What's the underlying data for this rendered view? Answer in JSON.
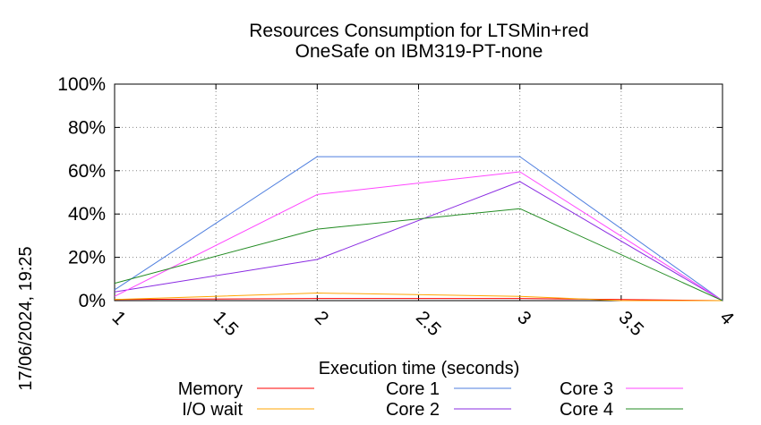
{
  "chart_data": {
    "type": "line",
    "title_line1": "Resources Consumption for LTSMin+red",
    "title_line2": "OneSafe on IBM319-PT-none",
    "xlabel": "Execution time (seconds)",
    "ylabel": "",
    "side_label": "17/06/2024, 19:25",
    "xlim": [
      1,
      4
    ],
    "ylim": [
      0,
      100
    ],
    "x_ticks": [
      "1",
      "1.5",
      "2",
      "2.5",
      "3",
      "3.5",
      "4"
    ],
    "x_tick_values": [
      1,
      1.5,
      2,
      2.5,
      3,
      3.5,
      4
    ],
    "y_ticks": [
      "0%",
      "20%",
      "40%",
      "60%",
      "80%",
      "100%"
    ],
    "y_tick_values": [
      0,
      20,
      40,
      60,
      80,
      100
    ],
    "grid": true,
    "legend_placement": "bottom",
    "series": [
      {
        "name": "Memory",
        "color": "#ff0000",
        "x": [
          1,
          2,
          3,
          4
        ],
        "values": [
          0.5,
          1,
          1,
          0
        ]
      },
      {
        "name": "I/O wait",
        "color": "#ffa500",
        "x": [
          1,
          2,
          3,
          3.5,
          4
        ],
        "values": [
          0.5,
          3.5,
          2,
          0,
          0
        ]
      },
      {
        "name": "Core 1",
        "color": "#4f7fdf",
        "x": [
          1,
          2,
          3,
          4
        ],
        "values": [
          5,
          66.5,
          66.5,
          0
        ]
      },
      {
        "name": "Core 2",
        "color": "#8a2be2",
        "x": [
          1,
          2,
          3,
          4
        ],
        "values": [
          4,
          19,
          55,
          0
        ]
      },
      {
        "name": "Core 3",
        "color": "#ff44ff",
        "x": [
          1,
          2,
          3,
          4
        ],
        "values": [
          2,
          49,
          59.5,
          0
        ]
      },
      {
        "name": "Core 4",
        "color": "#228b22",
        "x": [
          1,
          2,
          3,
          4
        ],
        "values": [
          8,
          33,
          42.5,
          0
        ]
      }
    ]
  }
}
